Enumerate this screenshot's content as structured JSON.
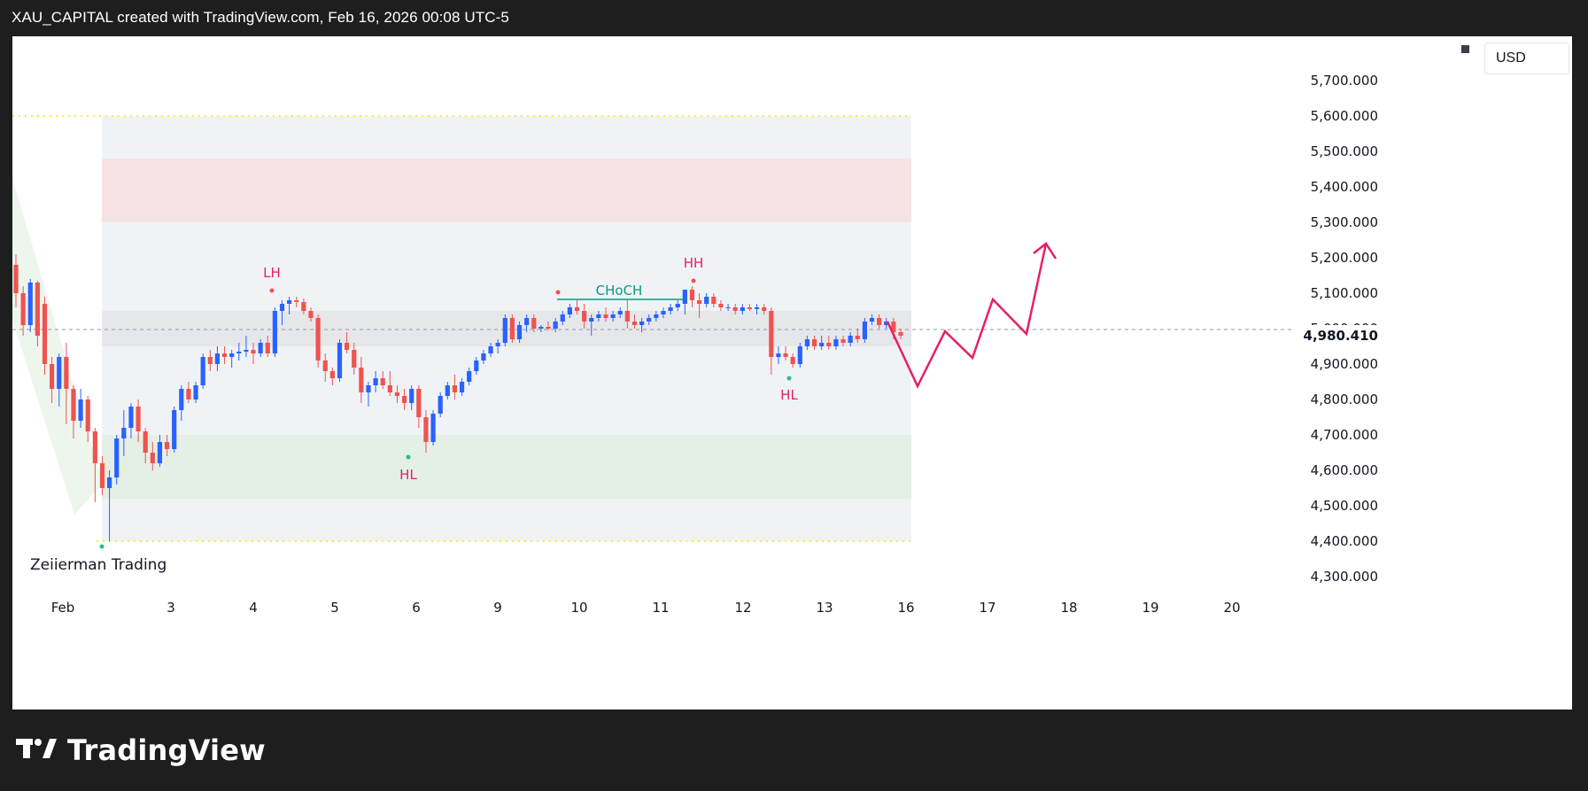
{
  "header": {
    "title": "XAU_CAPITAL created with TradingView.com, Feb 16, 2026 00:08 UTC-5"
  },
  "currency": "USD",
  "footer": {
    "brand": "TradingView",
    "logo_icon": "tradingview-logo-icon"
  },
  "watermark": "Zeiierman Trading",
  "colors": {
    "up": "#2962ff",
    "down": "#ef5350",
    "annotation": "#e91e63",
    "choch": "#089981",
    "dotted_line": "#ffeb3b"
  },
  "chart_data": {
    "type": "candlestick",
    "symbol_pair": "XAU/USD",
    "price_axis": {
      "ticks": [
        "5,700.000",
        "5,600.000",
        "5,500.000",
        "5,400.000",
        "5,300.000",
        "5,200.000",
        "5,100.000",
        "5,000.000",
        "4,900.000",
        "4,800.000",
        "4,700.000",
        "4,600.000",
        "4,500.000",
        "4,400.000",
        "4,300.000"
      ],
      "ylim": [
        4250,
        5750
      ]
    },
    "time_axis": {
      "labels": [
        "Feb",
        "3",
        "4",
        "5",
        "6",
        "9",
        "10",
        "11",
        "12",
        "13",
        "16",
        "17",
        "18",
        "19",
        "20"
      ]
    },
    "last_price": "4,980.410",
    "zones": [
      {
        "name": "premium-range",
        "from": 4400,
        "to": 5600
      },
      {
        "name": "supply-zone",
        "from": 5300,
        "to": 5480
      },
      {
        "name": "equilibrium-zone",
        "from": 4950,
        "to": 5050
      },
      {
        "name": "demand-zone",
        "from": 4520,
        "to": 4700
      }
    ],
    "labels": [
      {
        "text": "LH",
        "type": "swing"
      },
      {
        "text": "HL",
        "type": "swing"
      },
      {
        "text": "CHoCH",
        "type": "structure"
      },
      {
        "text": "HH",
        "type": "swing"
      },
      {
        "text": "HL",
        "type": "swing"
      }
    ],
    "projection": [
      [
        4980,
        4840
      ],
      [
        4840,
        4990
      ],
      [
        4990,
        4920
      ],
      [
        4920,
        5080
      ],
      [
        5080,
        4990
      ],
      [
        4990,
        5230
      ]
    ],
    "candles": [
      [
        5180,
        5210,
        5060,
        5100
      ],
      [
        5100,
        5120,
        4980,
        5010
      ],
      [
        5010,
        5140,
        4990,
        5130
      ],
      [
        5130,
        5135,
        4950,
        4980
      ],
      [
        5070,
        5090,
        4870,
        4900
      ],
      [
        4900,
        4920,
        4790,
        4830
      ],
      [
        4830,
        4930,
        4780,
        4920
      ],
      [
        4920,
        4960,
        4730,
        4830
      ],
      [
        4830,
        4840,
        4690,
        4740
      ],
      [
        4740,
        4830,
        4720,
        4800
      ],
      [
        4800,
        4810,
        4680,
        4710
      ],
      [
        4710,
        4720,
        4510,
        4620
      ],
      [
        4620,
        4640,
        4530,
        4550
      ],
      [
        4550,
        4600,
        4400,
        4580
      ],
      [
        4580,
        4700,
        4560,
        4690
      ],
      [
        4690,
        4770,
        4640,
        4720
      ],
      [
        4720,
        4790,
        4690,
        4780
      ],
      [
        4780,
        4800,
        4680,
        4710
      ],
      [
        4710,
        4720,
        4620,
        4650
      ],
      [
        4650,
        4680,
        4600,
        4620
      ],
      [
        4620,
        4700,
        4610,
        4680
      ],
      [
        4680,
        4700,
        4640,
        4660
      ],
      [
        4660,
        4780,
        4650,
        4770
      ],
      [
        4770,
        4840,
        4740,
        4830
      ],
      [
        4830,
        4850,
        4790,
        4800
      ],
      [
        4800,
        4850,
        4790,
        4840
      ],
      [
        4840,
        4930,
        4830,
        4920
      ],
      [
        4920,
        4940,
        4880,
        4900
      ],
      [
        4900,
        4950,
        4880,
        4930
      ],
      [
        4930,
        4950,
        4900,
        4920
      ],
      [
        4920,
        4940,
        4890,
        4930
      ],
      [
        4930,
        4960,
        4910,
        4935
      ],
      [
        4935,
        4980,
        4920,
        4940
      ],
      [
        4940,
        4960,
        4900,
        4930
      ],
      [
        4930,
        4970,
        4920,
        4960
      ],
      [
        4960,
        4980,
        4920,
        4930
      ],
      [
        4930,
        5060,
        4920,
        5050
      ],
      [
        5050,
        5080,
        5010,
        5070
      ],
      [
        5070,
        5090,
        5040,
        5080
      ],
      [
        5080,
        5090,
        5060,
        5075
      ],
      [
        5075,
        5085,
        5040,
        5050
      ],
      [
        5050,
        5060,
        5020,
        5030
      ],
      [
        5030,
        5040,
        4890,
        4910
      ],
      [
        4910,
        4930,
        4850,
        4880
      ],
      [
        4880,
        4890,
        4840,
        4860
      ],
      [
        4860,
        4970,
        4850,
        4960
      ],
      [
        4960,
        4990,
        4930,
        4940
      ],
      [
        4940,
        4960,
        4870,
        4890
      ],
      [
        4890,
        4920,
        4790,
        4820
      ],
      [
        4820,
        4850,
        4780,
        4840
      ],
      [
        4840,
        4880,
        4820,
        4860
      ],
      [
        4860,
        4880,
        4830,
        4840
      ],
      [
        4840,
        4880,
        4810,
        4820
      ],
      [
        4820,
        4840,
        4790,
        4810
      ],
      [
        4810,
        4830,
        4770,
        4790
      ],
      [
        4790,
        4840,
        4770,
        4830
      ],
      [
        4830,
        4840,
        4720,
        4750
      ],
      [
        4750,
        4770,
        4650,
        4680
      ],
      [
        4680,
        4770,
        4670,
        4760
      ],
      [
        4760,
        4820,
        4750,
        4810
      ],
      [
        4810,
        4850,
        4800,
        4840
      ],
      [
        4840,
        4870,
        4800,
        4820
      ],
      [
        4820,
        4860,
        4810,
        4850
      ],
      [
        4850,
        4890,
        4840,
        4880
      ],
      [
        4880,
        4920,
        4870,
        4910
      ],
      [
        4910,
        4940,
        4900,
        4930
      ],
      [
        4930,
        4960,
        4920,
        4950
      ],
      [
        4950,
        4970,
        4930,
        4960
      ],
      [
        4960,
        5040,
        4950,
        5030
      ],
      [
        5030,
        5040,
        4960,
        4970
      ],
      [
        4970,
        5020,
        4960,
        5010
      ],
      [
        5010,
        5040,
        4990,
        5030
      ],
      [
        5030,
        5040,
        4990,
        5000
      ],
      [
        5000,
        5010,
        4990,
        5005
      ],
      [
        5005,
        5020,
        4995,
        5000
      ],
      [
        5000,
        5030,
        4990,
        5020
      ],
      [
        5020,
        5050,
        5010,
        5040
      ],
      [
        5040,
        5070,
        5030,
        5060
      ],
      [
        5060,
        5080,
        5040,
        5050
      ],
      [
        5050,
        5070,
        5000,
        5020
      ],
      [
        5020,
        5040,
        4980,
        5030
      ],
      [
        5030,
        5050,
        5020,
        5040
      ],
      [
        5040,
        5060,
        5020,
        5030
      ],
      [
        5030,
        5050,
        5020,
        5040
      ],
      [
        5040,
        5060,
        5030,
        5050
      ],
      [
        5050,
        5080,
        5000,
        5020
      ],
      [
        5020,
        5040,
        5000,
        5010
      ],
      [
        5010,
        5030,
        4990,
        5020
      ],
      [
        5020,
        5040,
        5010,
        5030
      ],
      [
        5030,
        5050,
        5020,
        5040
      ],
      [
        5040,
        5060,
        5030,
        5050
      ],
      [
        5050,
        5070,
        5040,
        5060
      ],
      [
        5060,
        5080,
        5050,
        5070
      ],
      [
        5070,
        5110,
        5040,
        5110
      ],
      [
        5110,
        5120,
        5060,
        5080
      ],
      [
        5080,
        5100,
        5030,
        5070
      ],
      [
        5070,
        5100,
        5060,
        5090
      ],
      [
        5090,
        5100,
        5060,
        5070
      ],
      [
        5070,
        5080,
        5050,
        5060
      ],
      [
        5060,
        5070,
        5050,
        5060
      ],
      [
        5060,
        5070,
        5040,
        5050
      ],
      [
        5050,
        5070,
        5040,
        5060
      ],
      [
        5060,
        5070,
        5050,
        5055
      ],
      [
        5055,
        5070,
        5040,
        5060
      ],
      [
        5060,
        5070,
        5040,
        5050
      ],
      [
        5050,
        5060,
        4870,
        4920
      ],
      [
        4920,
        4950,
        4900,
        4930
      ],
      [
        4930,
        4950,
        4910,
        4920
      ],
      [
        4920,
        4930,
        4890,
        4900
      ],
      [
        4900,
        4960,
        4890,
        4950
      ],
      [
        4950,
        4980,
        4940,
        4970
      ],
      [
        4970,
        4980,
        4940,
        4950
      ],
      [
        4950,
        4980,
        4940,
        4960
      ],
      [
        4960,
        4980,
        4940,
        4950
      ],
      [
        4950,
        4980,
        4940,
        4970
      ],
      [
        4970,
        4980,
        4950,
        4960
      ],
      [
        4960,
        4990,
        4950,
        4980
      ],
      [
        4980,
        5000,
        4960,
        4970
      ],
      [
        4970,
        5030,
        4960,
        5020
      ],
      [
        5020,
        5040,
        5010,
        5030
      ],
      [
        5030,
        5040,
        5000,
        5010
      ],
      [
        5010,
        5030,
        5000,
        5020
      ],
      [
        5020,
        5030,
        4970,
        4990
      ],
      [
        4990,
        5000,
        4970,
        4980
      ]
    ]
  }
}
